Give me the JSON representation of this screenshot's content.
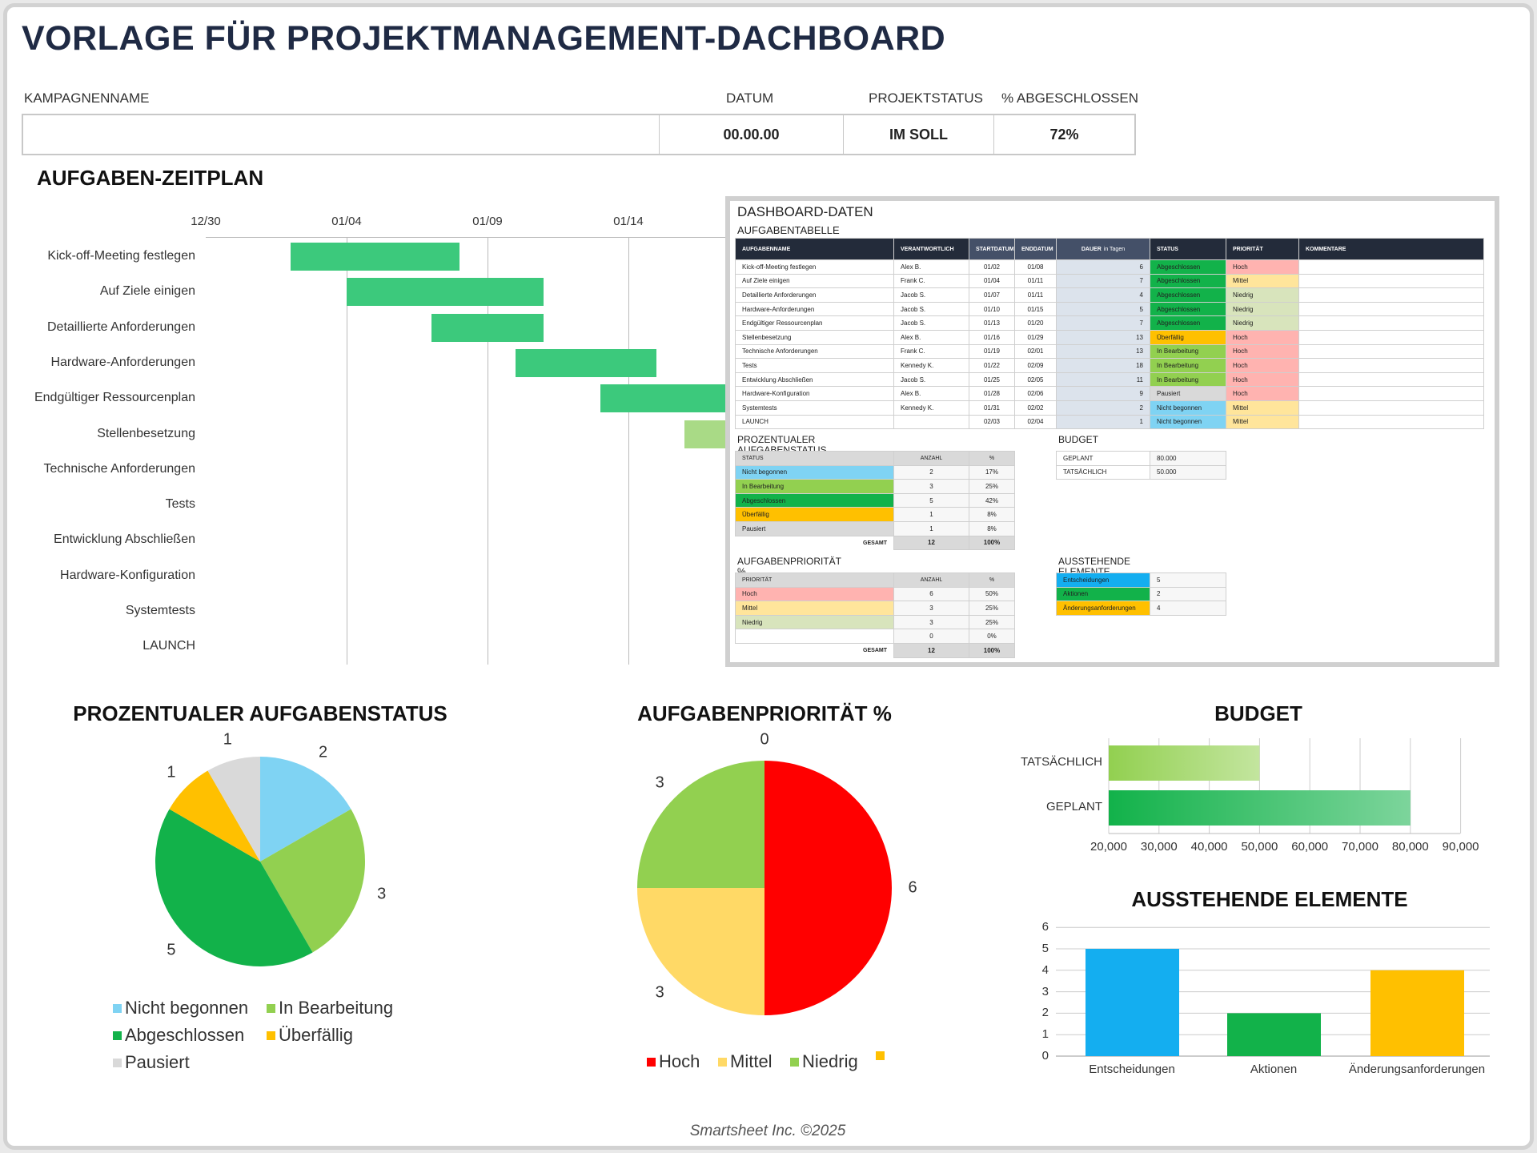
{
  "header": {
    "title": "VORLAGE FÜR PROJEKTMANAGEMENT-DACHBOARD",
    "campaign_label": "KAMPAGNENNAME",
    "campaign_value": "",
    "date_label": "DATUM",
    "date_value": "00.00.00",
    "status_label": "PROJEKTSTATUS",
    "status_value": "IM SOLL",
    "pct_label": "% ABGESCHLOSSEN",
    "pct_value": "72%"
  },
  "gantt": {
    "title": "AUFGABEN-ZEITPLAN",
    "ticks": [
      "12/30",
      "01/04",
      "01/09",
      "01/14"
    ]
  },
  "dashboard": {
    "title": "DASHBOARD-DATEN",
    "table_title": "AUFGABENTABELLE",
    "columns": [
      "AUFGABENNAME",
      "VERANTWORTLICH",
      "STARTDATUM",
      "ENDDATUM",
      "DAUER",
      "in Tagen",
      "STATUS",
      "PRIORITÄT",
      "KOMMENTARE"
    ],
    "tasks": [
      [
        "Kick-off-Meeting festlegen",
        "Alex B.",
        "01/02",
        "01/08",
        "6",
        "Abgeschlossen",
        "Hoch"
      ],
      [
        "Auf Ziele einigen",
        "Frank C.",
        "01/04",
        "01/11",
        "7",
        "Abgeschlossen",
        "Mittel"
      ],
      [
        "Detaillierte Anforderungen",
        "Jacob S.",
        "01/07",
        "01/11",
        "4",
        "Abgeschlossen",
        "Niedrig"
      ],
      [
        "Hardware-Anforderungen",
        "Jacob S.",
        "01/10",
        "01/15",
        "5",
        "Abgeschlossen",
        "Niedrig"
      ],
      [
        "Endgültiger Ressourcenplan",
        "Jacob S.",
        "01/13",
        "01/20",
        "7",
        "Abgeschlossen",
        "Niedrig"
      ],
      [
        "Stellenbesetzung",
        "Alex B.",
        "01/16",
        "01/29",
        "13",
        "Überfällig",
        "Hoch"
      ],
      [
        "Technische Anforderungen",
        "Frank C.",
        "01/19",
        "02/01",
        "13",
        "In Bearbeitung",
        "Hoch"
      ],
      [
        "Tests",
        "Kennedy K.",
        "01/22",
        "02/09",
        "18",
        "In Bearbeitung",
        "Hoch"
      ],
      [
        "Entwicklung Abschließen",
        "Jacob S.",
        "01/25",
        "02/05",
        "11",
        "In Bearbeitung",
        "Hoch"
      ],
      [
        "Hardware-Konfiguration",
        "Alex B.",
        "01/28",
        "02/06",
        "9",
        "Pausiert",
        "Hoch"
      ],
      [
        "Systemtests",
        "Kennedy K.",
        "01/31",
        "02/02",
        "2",
        "Nicht begonnen",
        "Mittel"
      ],
      [
        "LAUNCH",
        "",
        "02/03",
        "02/04",
        "1",
        "Nicht begonnen",
        "Mittel"
      ]
    ],
    "status_title": "PROZENTUALER AUFGABENSTATUS",
    "status_cols": [
      "STATUS",
      "ANZAHL",
      "%"
    ],
    "status_rows": [
      [
        "Nicht begonnen",
        "2",
        "17%"
      ],
      [
        "In Bearbeitung",
        "3",
        "25%"
      ],
      [
        "Abgeschlossen",
        "5",
        "42%"
      ],
      [
        "Überfällig",
        "1",
        "8%"
      ],
      [
        "Pausiert",
        "1",
        "8%"
      ]
    ],
    "total_label": "GESAMT",
    "status_total": [
      "12",
      "100%"
    ],
    "priority_title": "AUFGABENPRIORITÄT %",
    "priority_cols": [
      "PRIORITÄT",
      "ANZAHL",
      "%"
    ],
    "priority_rows": [
      [
        "Hoch",
        "6",
        "50%"
      ],
      [
        "Mittel",
        "3",
        "25%"
      ],
      [
        "Niedrig",
        "3",
        "25%"
      ],
      [
        "",
        "0",
        "0%"
      ]
    ],
    "priority_total": [
      "12",
      "100%"
    ],
    "budget_title": "BUDGET",
    "budget_rows": [
      [
        "GEPLANT",
        "80.000"
      ],
      [
        "TATSÄCHLICH",
        "50.000"
      ]
    ],
    "pending_title": "AUSSTEHENDE ELEMENTE",
    "pending_rows": [
      [
        "Entscheidungen",
        "5"
      ],
      [
        "Aktionen",
        "2"
      ],
      [
        "Änderungsanforderungen",
        "4"
      ]
    ]
  },
  "colors": {
    "Nicht begonnen": "#7fd3f3",
    "In Bearbeitung": "#92d050",
    "Abgeschlossen": "#12b24a",
    "Überfällig": "#ffc000",
    "Pausiert": "#d9d9d9",
    "Hoch": "#ffb3b0",
    "Mittel": "#ffe59b",
    "Niedrig": "#d8e4bc",
    "Entscheidungen": "#14aef0",
    "Aktionen": "#12b24a",
    "Änderungsanforderungen": "#ffc000"
  },
  "chart_data": [
    {
      "type": "pie",
      "title": "PROZENTUALER AUFGABENSTATUS",
      "categories": [
        "Nicht begonnen",
        "In Bearbeitung",
        "Abgeschlossen",
        "Überfällig",
        "Pausiert"
      ],
      "values": [
        2,
        3,
        5,
        1,
        1
      ],
      "colors": [
        "#7fd3f3",
        "#92d050",
        "#12b24a",
        "#ffc000",
        "#d9d9d9"
      ],
      "legend": "bottom"
    },
    {
      "type": "pie",
      "title": "AUFGABENPRIORITÄT %",
      "categories": [
        "Hoch",
        "Mittel",
        "Niedrig",
        ""
      ],
      "values": [
        6,
        3,
        3,
        0
      ],
      "colors": [
        "#ff0000",
        "#ffd966",
        "#92d050",
        "#ffc000"
      ],
      "legend": "bottom"
    },
    {
      "type": "bar",
      "orientation": "horizontal",
      "title": "BUDGET",
      "categories": [
        "TATSÄCHLICH",
        "GEPLANT"
      ],
      "values": [
        50000,
        80000
      ],
      "xlim": [
        20000,
        90000
      ],
      "ticks": [
        "20,000",
        "30,000",
        "40,000",
        "50,000",
        "60,000",
        "70,000",
        "80,000",
        "90,000"
      ],
      "colors": [
        "#92d050",
        "#12b24a"
      ],
      "grid": true
    },
    {
      "type": "bar",
      "title": "AUSSTEHENDE ELEMENTE",
      "categories": [
        "Entscheidungen",
        "Aktionen",
        "Änderungsanforderungen"
      ],
      "values": [
        5,
        2,
        4
      ],
      "ylim": [
        0,
        6
      ],
      "ticks": [
        "0",
        "1",
        "2",
        "3",
        "4",
        "5",
        "6"
      ],
      "colors": [
        "#14aef0",
        "#12b24a",
        "#ffc000"
      ],
      "grid": true
    }
  ],
  "footer": "Smartsheet Inc. ©2025"
}
